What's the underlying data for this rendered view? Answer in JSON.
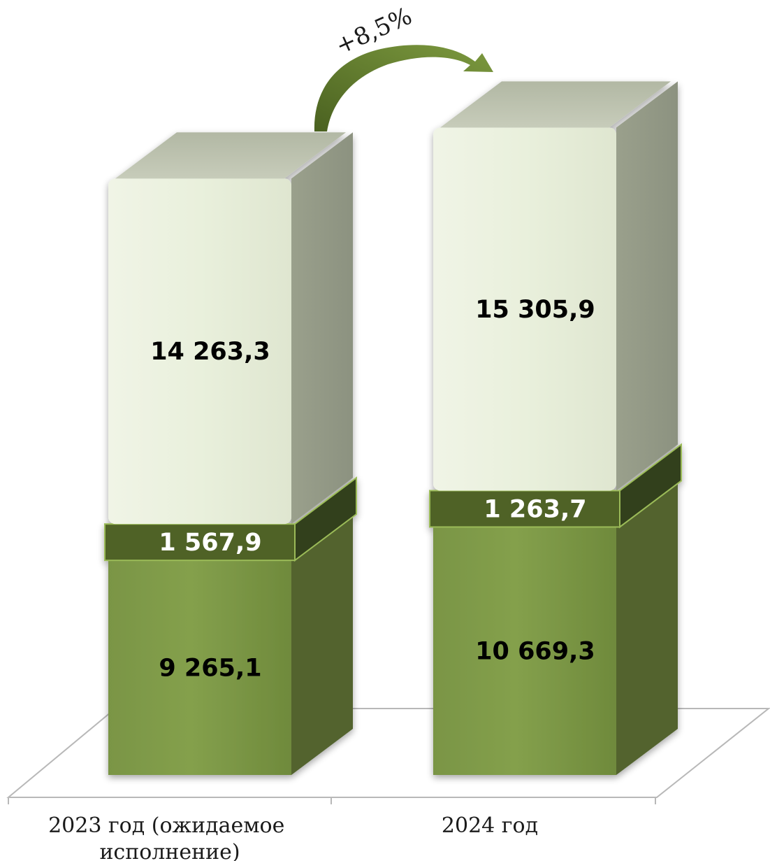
{
  "chart_data": {
    "type": "bar",
    "stacked": true,
    "three_d": true,
    "categories": [
      "2023 год (ожидаемое исполнение)",
      "2024 год"
    ],
    "category_lines": [
      [
        "2023 год (ожидаемое",
        "исполнение)"
      ],
      [
        "2024 год"
      ]
    ],
    "series": [
      {
        "values": [
          9265.1,
          10669.3
        ],
        "labels": [
          "9 265,1",
          "10 669,3"
        ],
        "color": "#7f9a48"
      },
      {
        "values": [
          1567.9,
          1263.7
        ],
        "labels": [
          "1 567,9",
          "1 263,7"
        ],
        "color": "#4f6228"
      },
      {
        "values": [
          14263.3,
          15305.9
        ],
        "labels": [
          "14 263,3",
          "15 305,9"
        ],
        "color": "#ebf1de"
      }
    ],
    "totals": [
      25096.3,
      27238.9
    ],
    "growth_annotation": "+8,5%",
    "legend": false,
    "grid": false
  }
}
